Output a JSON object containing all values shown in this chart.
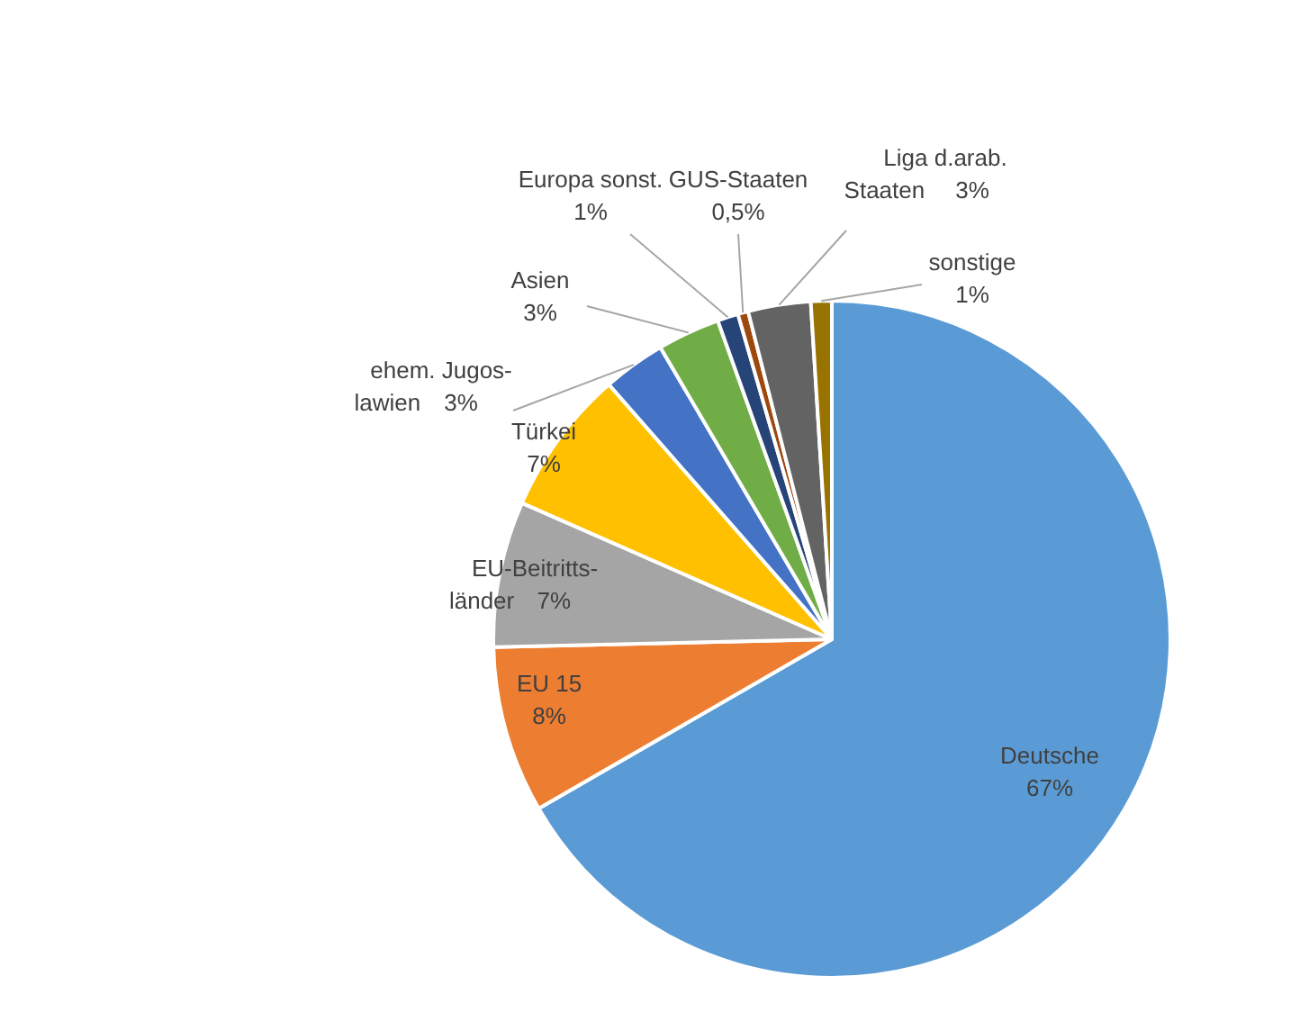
{
  "chart_data": {
    "type": "pie",
    "categories": [
      "Deutsche",
      "EU 15",
      "EU-Beitritts-\nländer",
      "Türkei",
      "ehem. Jugos-\nlawien",
      "Asien",
      "Europa sonst.",
      "GUS-Staaten",
      "Liga d.arab.\nStaaten",
      "sonstige"
    ],
    "values": [
      67,
      8,
      7,
      7,
      3,
      3,
      1,
      0.5,
      3,
      1
    ],
    "value_labels": [
      "67%",
      "8%",
      "7%",
      "7%",
      "3%",
      "3%",
      "1%",
      "0,5%",
      "3%",
      "1%"
    ],
    "colors": [
      "#5b9bd5",
      "#ed7d31",
      "#a5a5a5",
      "#ffc000",
      "#4472c4",
      "#70ad47",
      "#264478",
      "#9e480e",
      "#636363",
      "#997300"
    ]
  }
}
